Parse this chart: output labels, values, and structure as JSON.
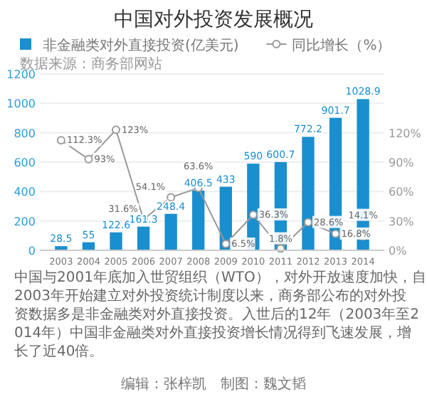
{
  "chart_data": {
    "type": "bar",
    "title": "中国对外投资发展概况",
    "categories": [
      "2003",
      "2004",
      "2005",
      "2006",
      "2007",
      "2008",
      "2009",
      "2010",
      "2011",
      "2012",
      "2013",
      "2014"
    ],
    "series": [
      {
        "name": "非金融类对外直接投资(亿美元)",
        "color": "#1a8fcf",
        "values": [
          28.5,
          55,
          122.6,
          161.3,
          248.4,
          406.5,
          433,
          590,
          600.7,
          772.2,
          901.7,
          1028.9
        ]
      },
      {
        "name": "同比增长（%）",
        "type": "line",
        "axis": "y2",
        "color": "#999999",
        "marker": "circle",
        "values": [
          112.3,
          93,
          123,
          31.6,
          54.1,
          63.6,
          6.5,
          36.3,
          1.8,
          28.6,
          16.8,
          14.1
        ],
        "value_labels": [
          "112.3%",
          "93%",
          "123%",
          "31.6%",
          "54.1%",
          "63.6%",
          "6.5%",
          "36.3%",
          "1.8%",
          "28.6%",
          "16.8%",
          "14.1%"
        ]
      }
    ],
    "ylim": [
      0,
      1200
    ],
    "yticks": [
      0,
      200,
      400,
      600,
      800,
      1000,
      1200
    ],
    "y2lim": [
      0,
      180
    ],
    "y2ticks": [
      {
        "value": 0,
        "label": "0%"
      },
      {
        "value": 30,
        "label": "30%"
      },
      {
        "value": 60,
        "label": "60%"
      },
      {
        "value": 90,
        "label": "90%"
      },
      {
        "value": 120,
        "label": "120%"
      }
    ],
    "data_labels": true,
    "grid": "y",
    "legend": "top",
    "annotations": [
      "数据来源：商务部网站",
      "中国与2001年底加入世贸组织（WTO），对外开放速度加快，自2003年开始建立对外投资统计制度以来，商务部公布的对外投资数据多是非金融类对外直接投资。入世后的12年（2003年至2014年）中国非金融类对外直接投资增长情况得到飞速发展，增长了近40倍。",
      "编辑：张梓凯　制图：魏文韬"
    ]
  }
}
